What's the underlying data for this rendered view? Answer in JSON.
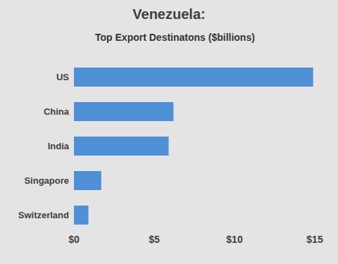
{
  "chart_data": {
    "type": "bar",
    "title": "Venezuela:",
    "subtitle": "Top Export Destinatons ($billions)",
    "orientation": "horizontal",
    "categories": [
      "US",
      "China",
      "India",
      "Singapore",
      "Switzerland"
    ],
    "values": [
      14.9,
      6.2,
      5.9,
      1.7,
      0.9
    ],
    "color": "#4f8fd6",
    "xlim": [
      0,
      15
    ],
    "xticks": [
      {
        "value": 0,
        "label": "$0"
      },
      {
        "value": 5,
        "label": "$5"
      },
      {
        "value": 10,
        "label": "$10"
      },
      {
        "value": 15,
        "label": "$15"
      }
    ],
    "grid": false
  }
}
